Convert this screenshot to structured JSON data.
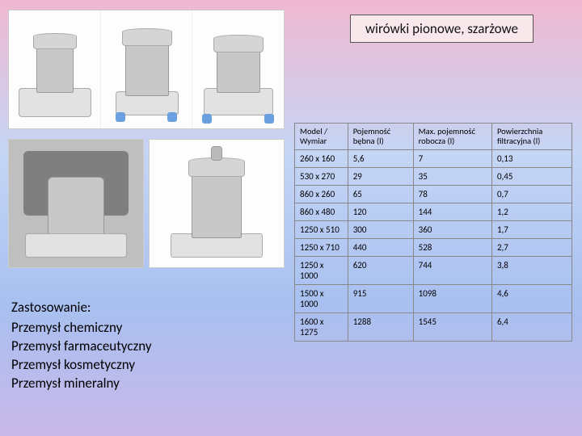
{
  "title": "wirówki pionowe, szarżowe",
  "applications": {
    "header": "Zastosowanie:",
    "items": [
      "Przemysł chemiczny",
      "Przemysł farmaceutyczny",
      "Przemysł kosmetyczny",
      "Przemysł mineralny"
    ]
  },
  "table": {
    "columns": [
      "Model / Wymiar",
      "Pojemność bębna (l)",
      "Max. pojemność robocza (l)",
      "Powierzchnia filtracyjna (l)"
    ],
    "rows": [
      [
        "260 x 160",
        "5,6",
        "7",
        "0,13"
      ],
      [
        "530 x 270",
        "29",
        "35",
        "0,45"
      ],
      [
        "860 x 260",
        "65",
        "78",
        "0,7"
      ],
      [
        "860 x 480",
        "120",
        "144",
        "1,2"
      ],
      [
        "1250 x 510",
        "300",
        "360",
        "1,7"
      ],
      [
        "1250 x 710",
        "440",
        "528",
        "2,7"
      ],
      [
        "1250 x 1000",
        "620",
        "744",
        "3,8"
      ],
      [
        "1500 x 1000",
        "915",
        "1098",
        "4,6"
      ],
      [
        "1600 x 1275",
        "1288",
        "1545",
        "6,4"
      ]
    ],
    "border_color": "#888888",
    "font_size_pt": 8,
    "header_font_size_pt": 8
  },
  "colors": {
    "title_bg": "#f8e8ec",
    "title_border": "#555555",
    "slide_gradient": [
      "#f0b8d0",
      "#c5d5f5",
      "#a8c0f0",
      "#c8b8e8"
    ]
  },
  "images": {
    "top_row": [
      "vertical-centrifuge-1",
      "vertical-centrifuge-2",
      "vertical-centrifuge-3"
    ],
    "bottom_left": "centrifuge-installed-photo",
    "bottom_right": "tall-centrifuge-cad"
  }
}
